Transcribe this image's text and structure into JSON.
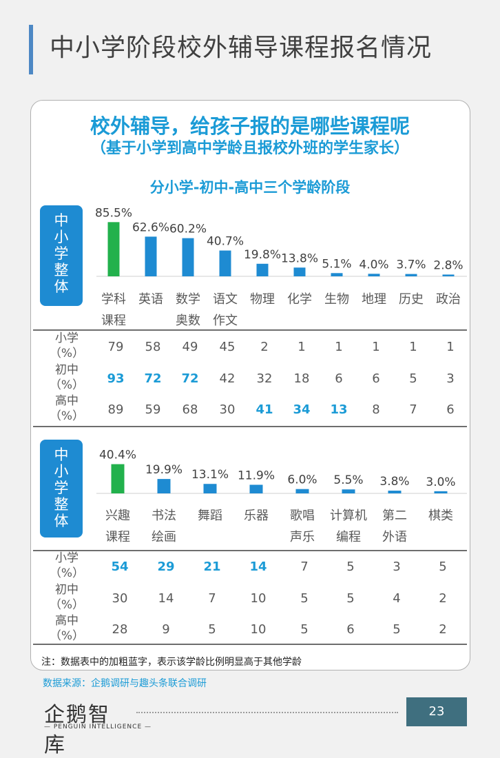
{
  "page_title": "中小学阶段校外辅导课程报名情况",
  "headline1": "校外辅导，给孩子报的是哪些课程呢",
  "headline2": "（基于小学到高中学龄且报校外班的学生家长）",
  "headline3": "分小学-初中-高中三个学龄阶段",
  "note": "注：数据表中的加粗蓝字，表示该学龄比例明显高于其他学龄",
  "source": "数据来源：企鹅调研与趣头条联合调研",
  "logo": {
    "main": "企鹅智库",
    "sub": "— PENGUIN INTELLIGENCE —"
  },
  "page_number": "23",
  "colors": {
    "highlight_bar": "#22b14c",
    "bar": "#1e8bd2",
    "bold_value": "#1b9bd6",
    "accent": "#1b9bd6"
  },
  "chart_data": [
    {
      "type": "bar",
      "side_label": "中小学整体",
      "categories": [
        [
          "学科",
          "课程"
        ],
        [
          "英语"
        ],
        [
          "数学",
          "奥数"
        ],
        [
          "语文",
          "作文"
        ],
        [
          "物理"
        ],
        [
          "化学"
        ],
        [
          "生物"
        ],
        [
          "地理"
        ],
        [
          "历史"
        ],
        [
          "政治"
        ]
      ],
      "values": [
        85.5,
        62.6,
        60.2,
        40.7,
        19.8,
        13.8,
        5.1,
        4.0,
        3.7,
        2.8
      ],
      "value_labels": [
        "85.5%",
        "62.6%",
        "60.2%",
        "40.7%",
        "19.8%",
        "13.8%",
        "5.1%",
        "4.0%",
        "3.7%",
        "2.8%"
      ],
      "table": [
        {
          "label": [
            "小学",
            "（%）"
          ],
          "values": [
            "79",
            "58",
            "49",
            "45",
            "2",
            "1",
            "1",
            "1",
            "1",
            "1"
          ],
          "bold": []
        },
        {
          "label": [
            "初中",
            "（%）"
          ],
          "values": [
            "93",
            "72",
            "72",
            "42",
            "32",
            "18",
            "6",
            "6",
            "5",
            "3"
          ],
          "bold": [
            0,
            1,
            2
          ]
        },
        {
          "label": [
            "高中",
            "（%）"
          ],
          "values": [
            "89",
            "59",
            "68",
            "30",
            "41",
            "34",
            "13",
            "8",
            "7",
            "6"
          ],
          "bold": [
            4,
            5,
            6
          ]
        }
      ]
    },
    {
      "type": "bar",
      "side_label": "中小学整体",
      "categories": [
        [
          "兴趣",
          "课程"
        ],
        [
          "书法",
          "绘画"
        ],
        [
          "舞蹈"
        ],
        [
          "乐器"
        ],
        [
          "歌唱",
          "声乐"
        ],
        [
          "计算机",
          "编程"
        ],
        [
          "第二",
          "外语"
        ],
        [
          "棋类"
        ]
      ],
      "values": [
        40.4,
        19.9,
        13.1,
        11.9,
        6.0,
        5.5,
        3.8,
        3.0
      ],
      "value_labels": [
        "40.4%",
        "19.9%",
        "13.1%",
        "11.9%",
        "6.0%",
        "5.5%",
        "3.8%",
        "3.0%"
      ],
      "table": [
        {
          "label": [
            "小学",
            "（%）"
          ],
          "values": [
            "54",
            "29",
            "21",
            "14",
            "7",
            "5",
            "3",
            "5"
          ],
          "bold": [
            0,
            1,
            2,
            3
          ]
        },
        {
          "label": [
            "初中",
            "（%）"
          ],
          "values": [
            "30",
            "14",
            "7",
            "10",
            "5",
            "5",
            "4",
            "2"
          ],
          "bold": []
        },
        {
          "label": [
            "高中",
            "（%）"
          ],
          "values": [
            "28",
            "9",
            "5",
            "10",
            "5",
            "6",
            "5",
            "2"
          ],
          "bold": []
        }
      ]
    }
  ]
}
